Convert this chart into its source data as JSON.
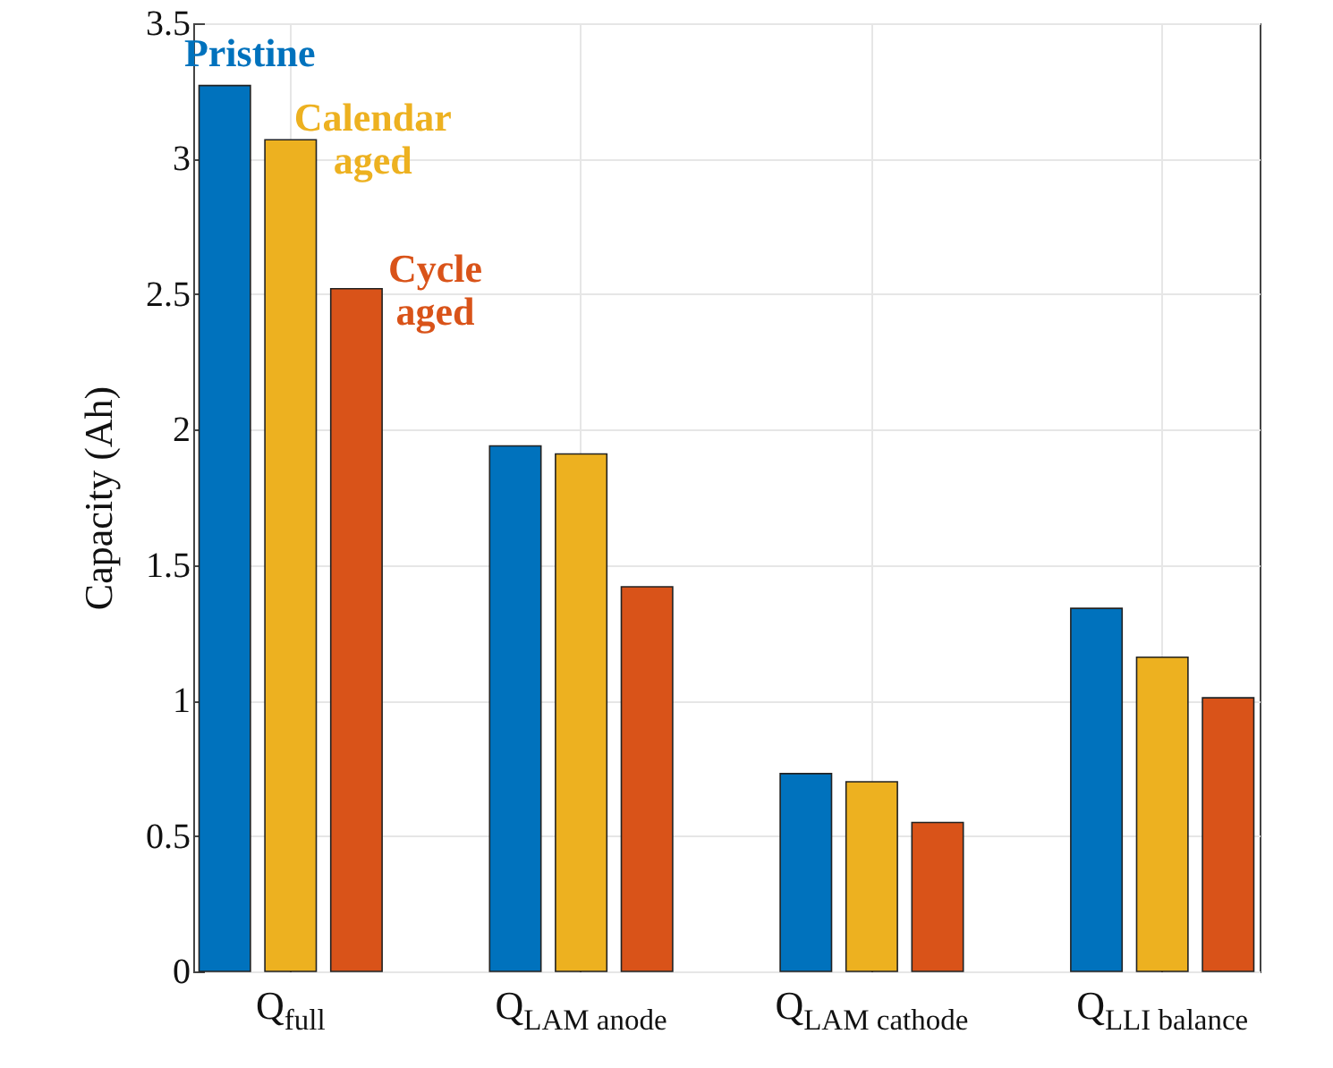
{
  "chart_data": {
    "type": "bar",
    "ylabel": "Capacity (Ah)",
    "categories": [
      "Q$_{full}$",
      "Q$_{LAM anode}$",
      "Q$_{LAM cathode}$",
      "Q$_{LLI balance}$"
    ],
    "series": [
      {
        "name": "Pristine",
        "color": "#0072bd",
        "values": [
          3.27,
          1.94,
          0.73,
          1.34
        ]
      },
      {
        "name": "Calendar aged",
        "color": "#edb120",
        "values": [
          3.07,
          1.91,
          0.7,
          1.16
        ]
      },
      {
        "name": "Cycle aged",
        "color": "#d95319",
        "values": [
          2.52,
          1.42,
          0.55,
          1.01
        ]
      }
    ],
    "ylim": [
      0,
      3.5
    ],
    "yticks": [
      0,
      0.5,
      1,
      1.5,
      2,
      2.5,
      3,
      3.5
    ],
    "grid": true
  }
}
